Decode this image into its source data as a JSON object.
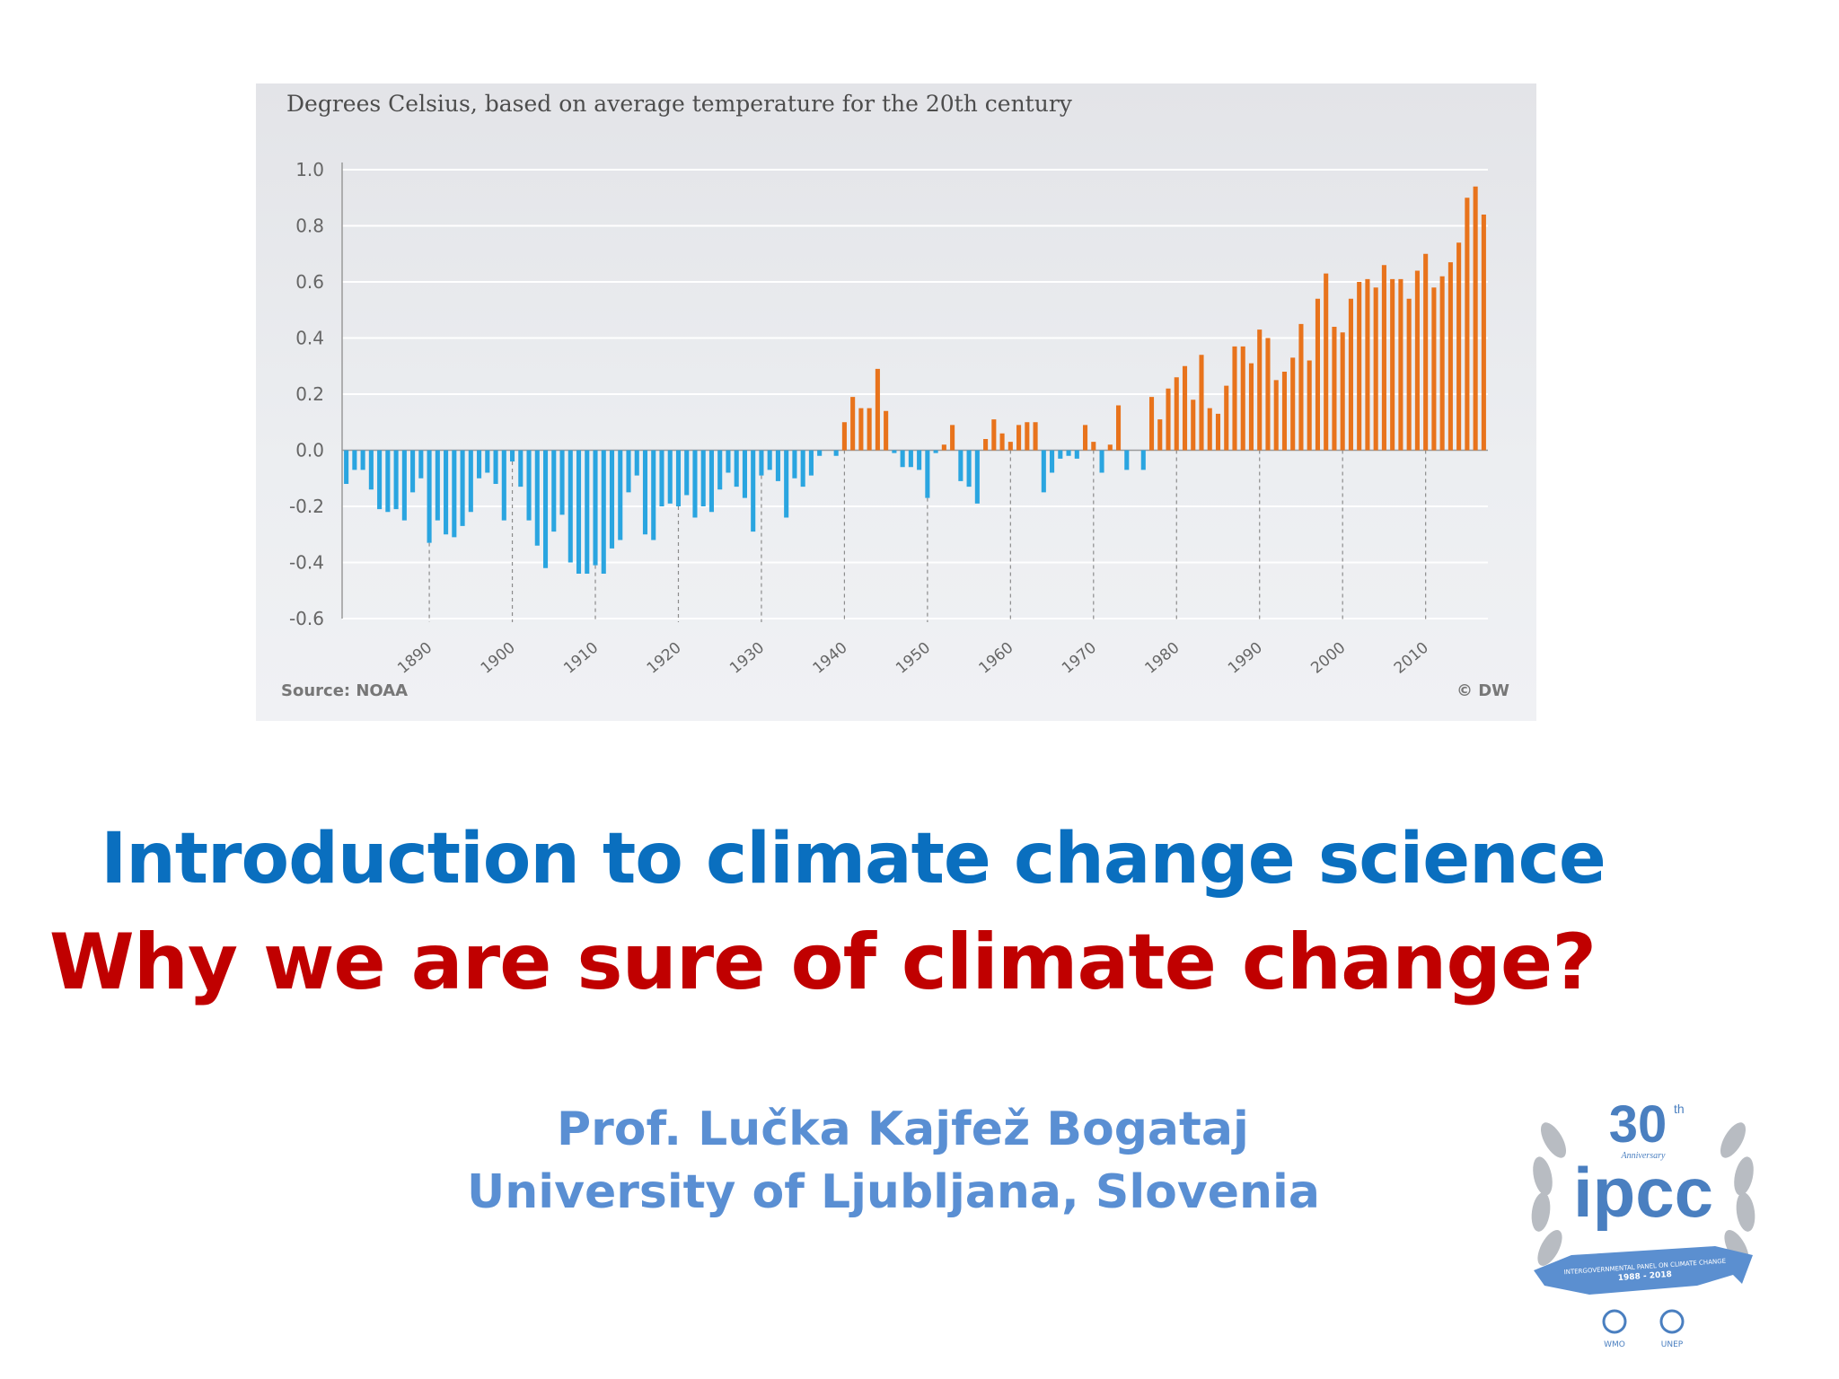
{
  "slide": {
    "title_line1": "Introduction to climate change science",
    "title_line2": "Why we are sure of climate change?",
    "author": "Prof. Lučka Kajfež Bogataj",
    "affiliation": "University of Ljubljana, Slovenia"
  },
  "logo": {
    "big_number": "30",
    "superscript": "th",
    "caption": "Anniversary",
    "name": "ipcc",
    "ribbon_text": "INTERGOVERNMENTAL PANEL ON CLIMATE CHANGE",
    "years": "1988 - 2018",
    "sub_left": "WMO",
    "sub_right": "UNEP"
  },
  "colors": {
    "negative_bar": "#2aa5e0",
    "positive_bar": "#e8731c",
    "title_blue": "#0a6fbf",
    "title_red": "#c00000",
    "author_blue": "#5a8fd3"
  },
  "chart_data": {
    "type": "bar",
    "title": "Degrees Celsius, based on average temperature for the 20th century",
    "source": "Source: NOAA",
    "credit": "© DW",
    "x_range": [
      1880,
      2017
    ],
    "x_ticks": [
      "1890",
      "1900",
      "1910",
      "1920",
      "1930",
      "1940",
      "1950",
      "1960",
      "1970",
      "1980",
      "1990",
      "2000",
      "2010"
    ],
    "y_ticks": [
      "1.0",
      "0.8",
      "0.6",
      "0.4",
      "0.2",
      "0.0",
      "-0.2",
      "-0.4",
      "-0.6"
    ],
    "ylim": [
      -0.6,
      1.0
    ],
    "grid": true,
    "x": [
      1880,
      1881,
      1882,
      1883,
      1884,
      1885,
      1886,
      1887,
      1888,
      1889,
      1890,
      1891,
      1892,
      1893,
      1894,
      1895,
      1896,
      1897,
      1898,
      1899,
      1900,
      1901,
      1902,
      1903,
      1904,
      1905,
      1906,
      1907,
      1908,
      1909,
      1910,
      1911,
      1912,
      1913,
      1914,
      1915,
      1916,
      1917,
      1918,
      1919,
      1920,
      1921,
      1922,
      1923,
      1924,
      1925,
      1926,
      1927,
      1928,
      1929,
      1930,
      1931,
      1932,
      1933,
      1934,
      1935,
      1936,
      1937,
      1938,
      1939,
      1940,
      1941,
      1942,
      1943,
      1944,
      1945,
      1946,
      1947,
      1948,
      1949,
      1950,
      1951,
      1952,
      1953,
      1954,
      1955,
      1956,
      1957,
      1958,
      1959,
      1960,
      1961,
      1962,
      1963,
      1964,
      1965,
      1966,
      1967,
      1968,
      1969,
      1970,
      1971,
      1972,
      1973,
      1974,
      1975,
      1976,
      1977,
      1978,
      1979,
      1980,
      1981,
      1982,
      1983,
      1984,
      1985,
      1986,
      1987,
      1988,
      1989,
      1990,
      1991,
      1992,
      1993,
      1994,
      1995,
      1996,
      1997,
      1998,
      1999,
      2000,
      2001,
      2002,
      2003,
      2004,
      2005,
      2006,
      2007,
      2008,
      2009,
      2010,
      2011,
      2012,
      2013,
      2014,
      2015,
      2016,
      2017
    ],
    "values": [
      -0.12,
      -0.07,
      -0.07,
      -0.14,
      -0.21,
      -0.22,
      -0.21,
      -0.25,
      -0.15,
      -0.1,
      -0.33,
      -0.25,
      -0.3,
      -0.31,
      -0.27,
      -0.22,
      -0.1,
      -0.08,
      -0.12,
      -0.25,
      -0.04,
      -0.13,
      -0.25,
      -0.34,
      -0.42,
      -0.29,
      -0.23,
      -0.4,
      -0.44,
      -0.44,
      -0.41,
      -0.44,
      -0.35,
      -0.32,
      -0.15,
      -0.09,
      -0.3,
      -0.32,
      -0.2,
      -0.19,
      -0.2,
      -0.16,
      -0.24,
      -0.2,
      -0.22,
      -0.14,
      -0.08,
      -0.13,
      -0.17,
      -0.29,
      -0.09,
      -0.07,
      -0.11,
      -0.24,
      -0.1,
      -0.13,
      -0.09,
      -0.02,
      0.0,
      -0.02,
      0.1,
      0.19,
      0.15,
      0.15,
      0.29,
      0.14,
      -0.01,
      -0.06,
      -0.06,
      -0.07,
      -0.17,
      -0.01,
      0.02,
      0.09,
      -0.11,
      -0.13,
      -0.19,
      0.04,
      0.11,
      0.06,
      0.03,
      0.09,
      0.1,
      0.1,
      -0.15,
      -0.08,
      -0.03,
      -0.02,
      -0.03,
      0.09,
      0.03,
      -0.08,
      0.02,
      0.16,
      -0.07,
      0.0,
      -0.07,
      0.19,
      0.11,
      0.22,
      0.26,
      0.3,
      0.18,
      0.34,
      0.15,
      0.13,
      0.23,
      0.37,
      0.37,
      0.31,
      0.43,
      0.4,
      0.25,
      0.28,
      0.33,
      0.45,
      0.32,
      0.54,
      0.63,
      0.44,
      0.42,
      0.54,
      0.6,
      0.61,
      0.58,
      0.66,
      0.61,
      0.61,
      0.54,
      0.64,
      0.7,
      0.58,
      0.62,
      0.67,
      0.74,
      0.9,
      0.94,
      0.84
    ]
  }
}
